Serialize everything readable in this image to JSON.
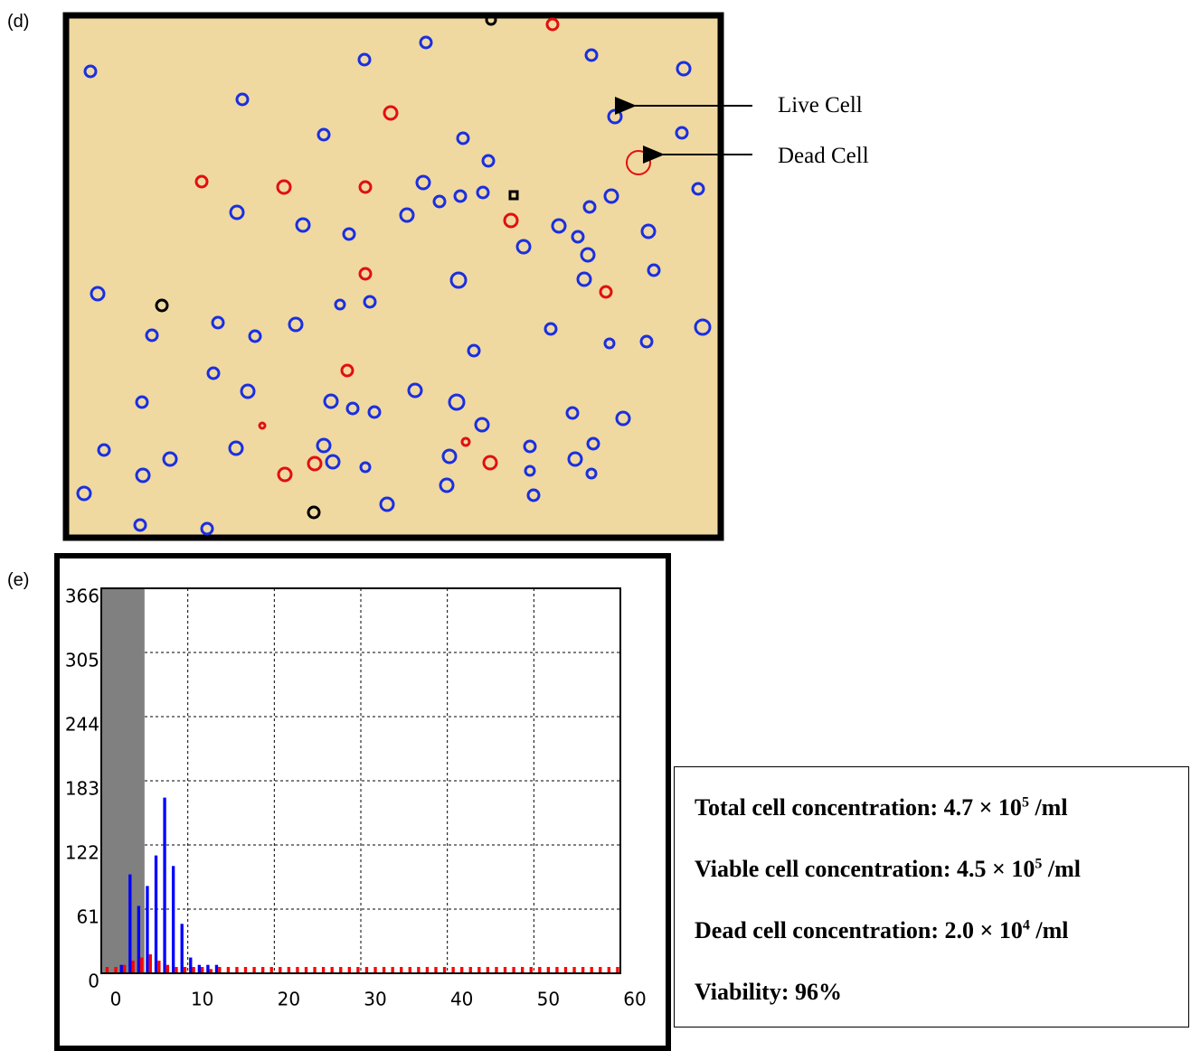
{
  "panel_d": {
    "label": "(d)",
    "annotations": [
      "Live Cell",
      "Dead Cell"
    ]
  },
  "panel_e": {
    "label": "(e)"
  },
  "chart_data": {
    "type": "bar",
    "x": [
      0,
      1,
      2,
      3,
      4,
      5,
      6,
      7,
      8,
      9,
      10,
      11,
      12,
      13,
      14,
      15,
      16,
      17,
      18,
      19,
      20,
      21,
      22,
      23,
      24,
      25,
      26,
      27,
      28,
      29,
      30,
      31,
      32,
      33,
      34,
      35,
      36,
      37,
      38,
      39,
      40,
      41,
      42,
      43,
      44,
      45,
      46,
      47,
      48,
      49,
      50,
      51,
      52,
      53,
      54,
      55,
      56,
      57,
      58,
      59
    ],
    "series": [
      {
        "color": "#0000ff",
        "values": [
          0,
          0,
          8,
          94,
          64,
          83,
          112,
          167,
          102,
          47,
          15,
          8,
          8,
          8,
          0,
          0,
          0,
          0,
          0,
          0,
          0,
          0,
          0,
          0,
          0,
          0,
          0,
          0,
          0,
          0,
          0,
          0,
          0,
          0,
          0,
          0,
          0,
          0,
          0,
          0,
          0,
          0,
          0,
          0,
          0,
          0,
          0,
          0,
          0,
          0,
          0,
          0,
          0,
          0,
          0,
          0,
          0,
          0,
          0,
          0
        ]
      },
      {
        "color": "#ff0000",
        "values": [
          6,
          6,
          8,
          12,
          15,
          18,
          12,
          8,
          6,
          6,
          6,
          6,
          4,
          6,
          6,
          6,
          6,
          6,
          6,
          6,
          6,
          6,
          6,
          6,
          6,
          6,
          6,
          6,
          6,
          6,
          6,
          6,
          6,
          6,
          6,
          6,
          6,
          6,
          6,
          6,
          6,
          6,
          6,
          6,
          6,
          6,
          6,
          6,
          6,
          6,
          6,
          6,
          6,
          6,
          6,
          6,
          6,
          6,
          6,
          6
        ]
      }
    ],
    "gate": [
      0,
      5
    ],
    "gate_color": "#808080",
    "xlim": [
      0,
      60
    ],
    "xticks": [
      0,
      10,
      20,
      30,
      40,
      50,
      60
    ],
    "ylim": [
      0,
      366
    ],
    "yticks": [
      0,
      61,
      122,
      183,
      244,
      305,
      366
    ],
    "grid": true
  },
  "stats": [
    {
      "label": "Total cell concentration:",
      "mantissa": "4.7 × 10",
      "exponent": "5",
      "unit": "/ml"
    },
    {
      "label": "Viable cell concentration:",
      "mantissa": "4.5 × 10",
      "exponent": "5",
      "unit": "/ml"
    },
    {
      "label": "Dead cell concentration:",
      "mantissa": "2.0 × 10",
      "exponent": "4",
      "unit": "/ml"
    },
    {
      "label": "Viability:",
      "value": "96%"
    }
  ]
}
